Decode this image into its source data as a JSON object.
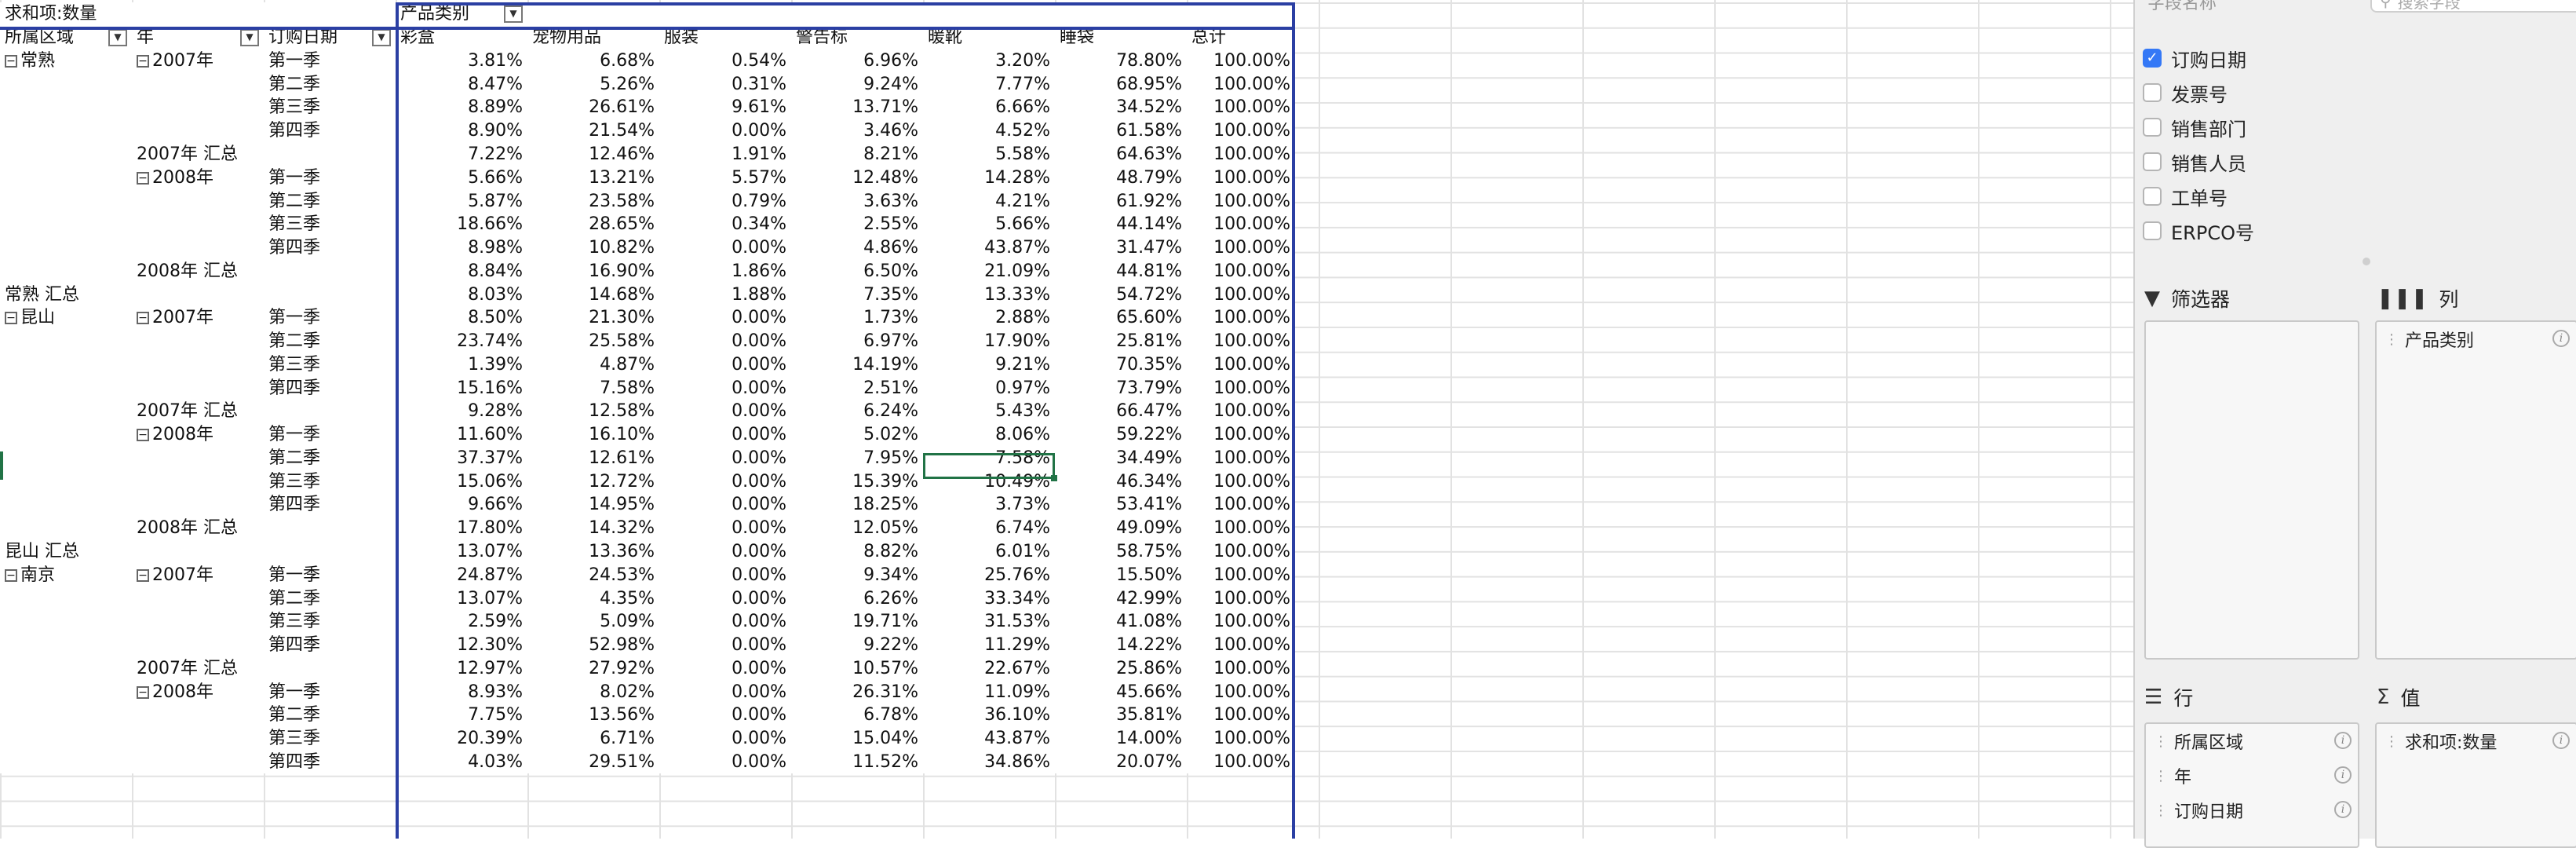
{
  "sheet": {
    "value_label": "求和项:数量",
    "col_field": "产品类别",
    "row_headers": [
      "所属区域",
      "年",
      "订购日期"
    ],
    "columns": [
      "彩盒",
      "宠物用品",
      "服装",
      "警告标",
      "暖靴",
      "睡袋",
      "总计"
    ],
    "rows": [
      {
        "region": "常熟",
        "year": "2007年",
        "q": "第一季",
        "v": [
          "3.81%",
          "6.68%",
          "0.54%",
          "6.96%",
          "3.20%",
          "78.80%",
          "100.00%"
        ]
      },
      {
        "q": "第二季",
        "v": [
          "8.47%",
          "5.26%",
          "0.31%",
          "9.24%",
          "7.77%",
          "68.95%",
          "100.00%"
        ]
      },
      {
        "q": "第三季",
        "v": [
          "8.89%",
          "26.61%",
          "9.61%",
          "13.71%",
          "6.66%",
          "34.52%",
          "100.00%"
        ]
      },
      {
        "q": "第四季",
        "v": [
          "8.90%",
          "21.54%",
          "0.00%",
          "3.46%",
          "4.52%",
          "61.58%",
          "100.00%"
        ]
      },
      {
        "ysum": "2007年 汇总",
        "v": [
          "7.22%",
          "12.46%",
          "1.91%",
          "8.21%",
          "5.58%",
          "64.63%",
          "100.00%"
        ]
      },
      {
        "year": "2008年",
        "q": "第一季",
        "v": [
          "5.66%",
          "13.21%",
          "5.57%",
          "12.48%",
          "14.28%",
          "48.79%",
          "100.00%"
        ]
      },
      {
        "q": "第二季",
        "v": [
          "5.87%",
          "23.58%",
          "0.79%",
          "3.63%",
          "4.21%",
          "61.92%",
          "100.00%"
        ]
      },
      {
        "q": "第三季",
        "v": [
          "18.66%",
          "28.65%",
          "0.34%",
          "2.55%",
          "5.66%",
          "44.14%",
          "100.00%"
        ]
      },
      {
        "q": "第四季",
        "v": [
          "8.98%",
          "10.82%",
          "0.00%",
          "4.86%",
          "43.87%",
          "31.47%",
          "100.00%"
        ]
      },
      {
        "ysum": "2008年 汇总",
        "v": [
          "8.84%",
          "16.90%",
          "1.86%",
          "6.50%",
          "21.09%",
          "44.81%",
          "100.00%"
        ]
      },
      {
        "rsum": "常熟 汇总",
        "v": [
          "8.03%",
          "14.68%",
          "1.88%",
          "7.35%",
          "13.33%",
          "54.72%",
          "100.00%"
        ]
      },
      {
        "region": "昆山",
        "year": "2007年",
        "q": "第一季",
        "v": [
          "8.50%",
          "21.30%",
          "0.00%",
          "1.73%",
          "2.88%",
          "65.60%",
          "100.00%"
        ]
      },
      {
        "q": "第二季",
        "v": [
          "23.74%",
          "25.58%",
          "0.00%",
          "6.97%",
          "17.90%",
          "25.81%",
          "100.00%"
        ]
      },
      {
        "q": "第三季",
        "v": [
          "1.39%",
          "4.87%",
          "0.00%",
          "14.19%",
          "9.21%",
          "70.35%",
          "100.00%"
        ]
      },
      {
        "q": "第四季",
        "v": [
          "15.16%",
          "7.58%",
          "0.00%",
          "2.51%",
          "0.97%",
          "73.79%",
          "100.00%"
        ]
      },
      {
        "ysum": "2007年 汇总",
        "v": [
          "9.28%",
          "12.58%",
          "0.00%",
          "6.24%",
          "5.43%",
          "66.47%",
          "100.00%"
        ]
      },
      {
        "year": "2008年",
        "q": "第一季",
        "v": [
          "11.60%",
          "16.10%",
          "0.00%",
          "5.02%",
          "8.06%",
          "59.22%",
          "100.00%"
        ]
      },
      {
        "q": "第二季",
        "v": [
          "37.37%",
          "12.61%",
          "0.00%",
          "7.95%",
          "7.58%",
          "34.49%",
          "100.00%"
        ]
      },
      {
        "q": "第三季",
        "v": [
          "15.06%",
          "12.72%",
          "0.00%",
          "15.39%",
          "10.49%",
          "46.34%",
          "100.00%"
        ]
      },
      {
        "q": "第四季",
        "v": [
          "9.66%",
          "14.95%",
          "0.00%",
          "18.25%",
          "3.73%",
          "53.41%",
          "100.00%"
        ]
      },
      {
        "ysum": "2008年 汇总",
        "v": [
          "17.80%",
          "14.32%",
          "0.00%",
          "12.05%",
          "6.74%",
          "49.09%",
          "100.00%"
        ]
      },
      {
        "rsum": "昆山 汇总",
        "v": [
          "13.07%",
          "13.36%",
          "0.00%",
          "8.82%",
          "6.01%",
          "58.75%",
          "100.00%"
        ]
      },
      {
        "region": "南京",
        "year": "2007年",
        "q": "第一季",
        "v": [
          "24.87%",
          "24.53%",
          "0.00%",
          "9.34%",
          "25.76%",
          "15.50%",
          "100.00%"
        ]
      },
      {
        "q": "第二季",
        "v": [
          "13.07%",
          "4.35%",
          "0.00%",
          "6.26%",
          "33.34%",
          "42.99%",
          "100.00%"
        ]
      },
      {
        "q": "第三季",
        "v": [
          "2.59%",
          "5.09%",
          "0.00%",
          "19.71%",
          "31.53%",
          "41.08%",
          "100.00%"
        ]
      },
      {
        "q": "第四季",
        "v": [
          "12.30%",
          "52.98%",
          "0.00%",
          "9.22%",
          "11.29%",
          "14.22%",
          "100.00%"
        ]
      },
      {
        "ysum": "2007年 汇总",
        "v": [
          "12.97%",
          "27.92%",
          "0.00%",
          "10.57%",
          "22.67%",
          "25.86%",
          "100.00%"
        ]
      },
      {
        "year": "2008年",
        "q": "第一季",
        "v": [
          "8.93%",
          "8.02%",
          "0.00%",
          "26.31%",
          "11.09%",
          "45.66%",
          "100.00%"
        ]
      },
      {
        "q": "第二季",
        "v": [
          "7.75%",
          "13.56%",
          "0.00%",
          "6.78%",
          "36.10%",
          "35.81%",
          "100.00%"
        ]
      },
      {
        "q": "第三季",
        "v": [
          "20.39%",
          "6.71%",
          "0.00%",
          "15.04%",
          "43.87%",
          "14.00%",
          "100.00%"
        ]
      },
      {
        "q": "第四季",
        "v": [
          "4.03%",
          "29.51%",
          "0.00%",
          "11.52%",
          "34.86%",
          "20.07%",
          "100.00%"
        ]
      }
    ]
  },
  "pane": {
    "header_title": "字段名称",
    "search_placeholder": "搜索字段",
    "fields": [
      {
        "label": "订购日期",
        "checked": true
      },
      {
        "label": "发票号",
        "checked": false
      },
      {
        "label": "销售部门",
        "checked": false
      },
      {
        "label": "销售人员",
        "checked": false
      },
      {
        "label": "工单号",
        "checked": false
      },
      {
        "label": "ERPCO号",
        "checked": false
      }
    ],
    "filters_title": "筛选器",
    "columns_title": "列",
    "column_chips": [
      "产品类别"
    ],
    "rows_title": "行",
    "row_chips": [
      "所属区域",
      "年",
      "订购日期"
    ],
    "values_title": "值",
    "value_chips": [
      "求和项:数量"
    ]
  },
  "colors": {
    "pivot_border": "#2b3fa3",
    "selection": "#217346",
    "checkbox_on": "#3478f6"
  }
}
